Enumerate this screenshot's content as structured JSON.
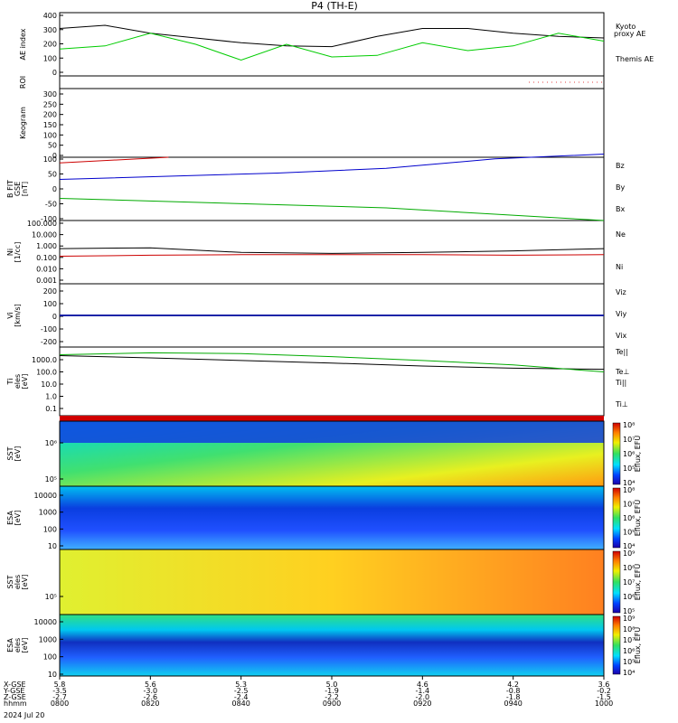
{
  "title": "P4 (TH-E)",
  "date_label": "2024 Jul 20",
  "xaxis": {
    "row_labels": [
      "X-GSE",
      "Y-GSE",
      "Z-GSE",
      "hhmm"
    ],
    "ticks": [
      {
        "x": "5.8",
        "y": "-3.5",
        "z": "-2.7",
        "t": "0800"
      },
      {
        "x": "5.6",
        "y": "-3.0",
        "z": "-2.6",
        "t": "0820"
      },
      {
        "x": "5.3",
        "y": "-2.5",
        "z": "-2.4",
        "t": "0840"
      },
      {
        "x": "5.0",
        "y": "-1.9",
        "z": "-2.2",
        "t": "0900"
      },
      {
        "x": "4.6",
        "y": "-1.4",
        "z": "-2.0",
        "t": "0920"
      },
      {
        "x": "4.2",
        "y": "-0.8",
        "z": "-1.8",
        "t": "0940"
      },
      {
        "x": "3.6",
        "y": "-0.2",
        "z": "-1.5",
        "t": "1000"
      }
    ]
  },
  "panels": {
    "ae": {
      "ylabel": "AE index",
      "yticks": [
        "400",
        "300",
        "200",
        "100",
        "0"
      ],
      "legend": [
        "Kyoto",
        "proxy AE",
        "Themis AE"
      ],
      "colors": {
        "kyoto": "#00cc00",
        "themis": "#000000"
      }
    },
    "roi": {
      "ylabel": "ROI"
    },
    "keogram": {
      "ylabel": "Keogram",
      "yticks": [
        "300",
        "250",
        "200",
        "150",
        "100",
        "50",
        "0"
      ]
    },
    "bfield": {
      "ylabel": [
        "B FIT",
        "GSE",
        "[nT]"
      ],
      "yticks": [
        "100",
        "50",
        "0",
        "-50",
        "-100"
      ],
      "legend": [
        "Bz",
        "By",
        "Bx"
      ],
      "colors": [
        "#cc0000",
        "#00aa00",
        "#0000cc"
      ]
    },
    "density": {
      "ylabel": [
        "Ni",
        "[1/cc]"
      ],
      "yticks": [
        "100.000",
        "10.000",
        "1.000",
        "0.100",
        "0.010",
        "0.001"
      ],
      "legend": [
        "Ne",
        "Ni"
      ],
      "colors": [
        "#cc0000",
        "#000000"
      ]
    },
    "velocity": {
      "ylabel": [
        "Vi",
        "[km/s]"
      ],
      "yticks": [
        "200",
        "100",
        "0",
        "-100",
        "-200"
      ],
      "legend": [
        "Viz",
        "Viy",
        "Vix"
      ],
      "colors": [
        "#cc0000",
        "#00aa00",
        "#0000cc"
      ]
    },
    "temp": {
      "ylabel": [
        "Ti",
        "eles",
        "[eV]"
      ],
      "yticks": [
        "1000.0",
        "100.0",
        "10.0",
        "1.0",
        "0.1"
      ],
      "legend": [
        "Te||",
        "Te⊥",
        "Ti||",
        "Ti⊥"
      ],
      "colors": [
        "#000000",
        "#cc0000",
        "#00aa00",
        "#0000cc"
      ]
    },
    "spec1": {
      "ylabel": [
        "SST",
        "[eV]"
      ],
      "yticks": [
        "10⁶",
        "10⁵"
      ],
      "cbar": "Eflux, EFU",
      "cticks": [
        "10⁸",
        "10⁷",
        "10⁶",
        "10⁵",
        "10⁴"
      ]
    },
    "spec2": {
      "ylabel": [
        "ESA",
        "[eV]"
      ],
      "yticks": [
        "10000",
        "1000",
        "100",
        "10"
      ],
      "cbar": "Eflux, EFU",
      "cticks": [
        "10⁸",
        "10⁷",
        "10⁶",
        "10⁵",
        "10⁴"
      ]
    },
    "spec3": {
      "ylabel": [
        "SST",
        "eles",
        "[eV]"
      ],
      "yticks": [
        "10⁵"
      ],
      "cbar": "Eflux, EFU",
      "cticks": [
        "10⁹",
        "10⁸",
        "10⁷",
        "10⁶",
        "10⁵"
      ]
    },
    "spec4": {
      "ylabel": [
        "ESA",
        "eles",
        "[eV]"
      ],
      "yticks": [
        "10000",
        "1000",
        "100",
        "10"
      ],
      "cbar": "Eflux, EFU",
      "cticks": [
        "10⁹",
        "10⁸",
        "10⁷",
        "10⁶",
        "10⁵",
        "10⁴"
      ]
    }
  },
  "chart_data": [
    {
      "type": "line",
      "title": "P4 (TH-E)",
      "ylabel": "AE index",
      "ylim": [
        0,
        400
      ],
      "x": [
        "0800",
        "0810",
        "0820",
        "0830",
        "0840",
        "0850",
        "0900",
        "0910",
        "0920",
        "0930",
        "0940",
        "0950",
        "1000"
      ],
      "series": [
        {
          "name": "Themis AE",
          "values": [
            300,
            320,
            270,
            240,
            210,
            190,
            185,
            250,
            300,
            300,
            270,
            250,
            240
          ]
        },
        {
          "name": "Kyoto proxy AE",
          "values": [
            170,
            190,
            270,
            200,
            100,
            200,
            120,
            130,
            210,
            160,
            190,
            270,
            220
          ]
        }
      ]
    },
    {
      "type": "line",
      "ylabel": "B FIT GSE [nT]",
      "ylim": [
        -100,
        100
      ],
      "x": [
        "0800",
        "0820",
        "0840",
        "0900",
        "0920",
        "0940"
      ],
      "series": [
        {
          "name": "Bz",
          "values": [
            82,
            100,
            null,
            null,
            null,
            null
          ]
        },
        {
          "name": "By",
          "values": [
            -30,
            -40,
            -50,
            -60,
            -80,
            -100
          ]
        },
        {
          "name": "Bx",
          "values": [
            30,
            40,
            50,
            65,
            95,
            110
          ]
        }
      ]
    },
    {
      "type": "line",
      "ylabel": "Ni [1/cc]",
      "ylim": [
        0.001,
        100
      ],
      "x": [
        "0800",
        "0820",
        "0840",
        "0900",
        "0920",
        "0940",
        "1000"
      ],
      "series": [
        {
          "name": "Ni",
          "values": [
            0.6,
            0.7,
            0.3,
            0.25,
            0.3,
            0.4,
            0.6
          ]
        },
        {
          "name": "Ne",
          "values": [
            0.15,
            0.18,
            0.2,
            0.2,
            0.2,
            0.18,
            0.2
          ]
        }
      ]
    },
    {
      "type": "line",
      "ylabel": "Vi [km/s]",
      "ylim": [
        -250,
        250
      ],
      "x": [
        "0800",
        "0830",
        "0900",
        "0930",
        "1000"
      ],
      "series": [
        {
          "name": "Viz",
          "values": [
            0,
            0,
            0,
            0,
            0
          ]
        },
        {
          "name": "Viy",
          "values": [
            0,
            0,
            0,
            0,
            0
          ]
        },
        {
          "name": "Vix",
          "values": [
            0,
            0,
            0,
            0,
            0
          ]
        }
      ]
    },
    {
      "type": "line",
      "ylabel": "Ti eles [eV]",
      "ylim": [
        0.1,
        5000
      ],
      "x": [
        "0800",
        "0820",
        "0840",
        "0900",
        "0920",
        "0940",
        "1000"
      ],
      "series": [
        {
          "name": "Te||",
          "values": [
            1300,
            900,
            600,
            400,
            250,
            180,
            150
          ]
        },
        {
          "name": "Ti||",
          "values": [
            1500,
            2000,
            1800,
            1100,
            600,
            300,
            100
          ]
        }
      ]
    }
  ]
}
